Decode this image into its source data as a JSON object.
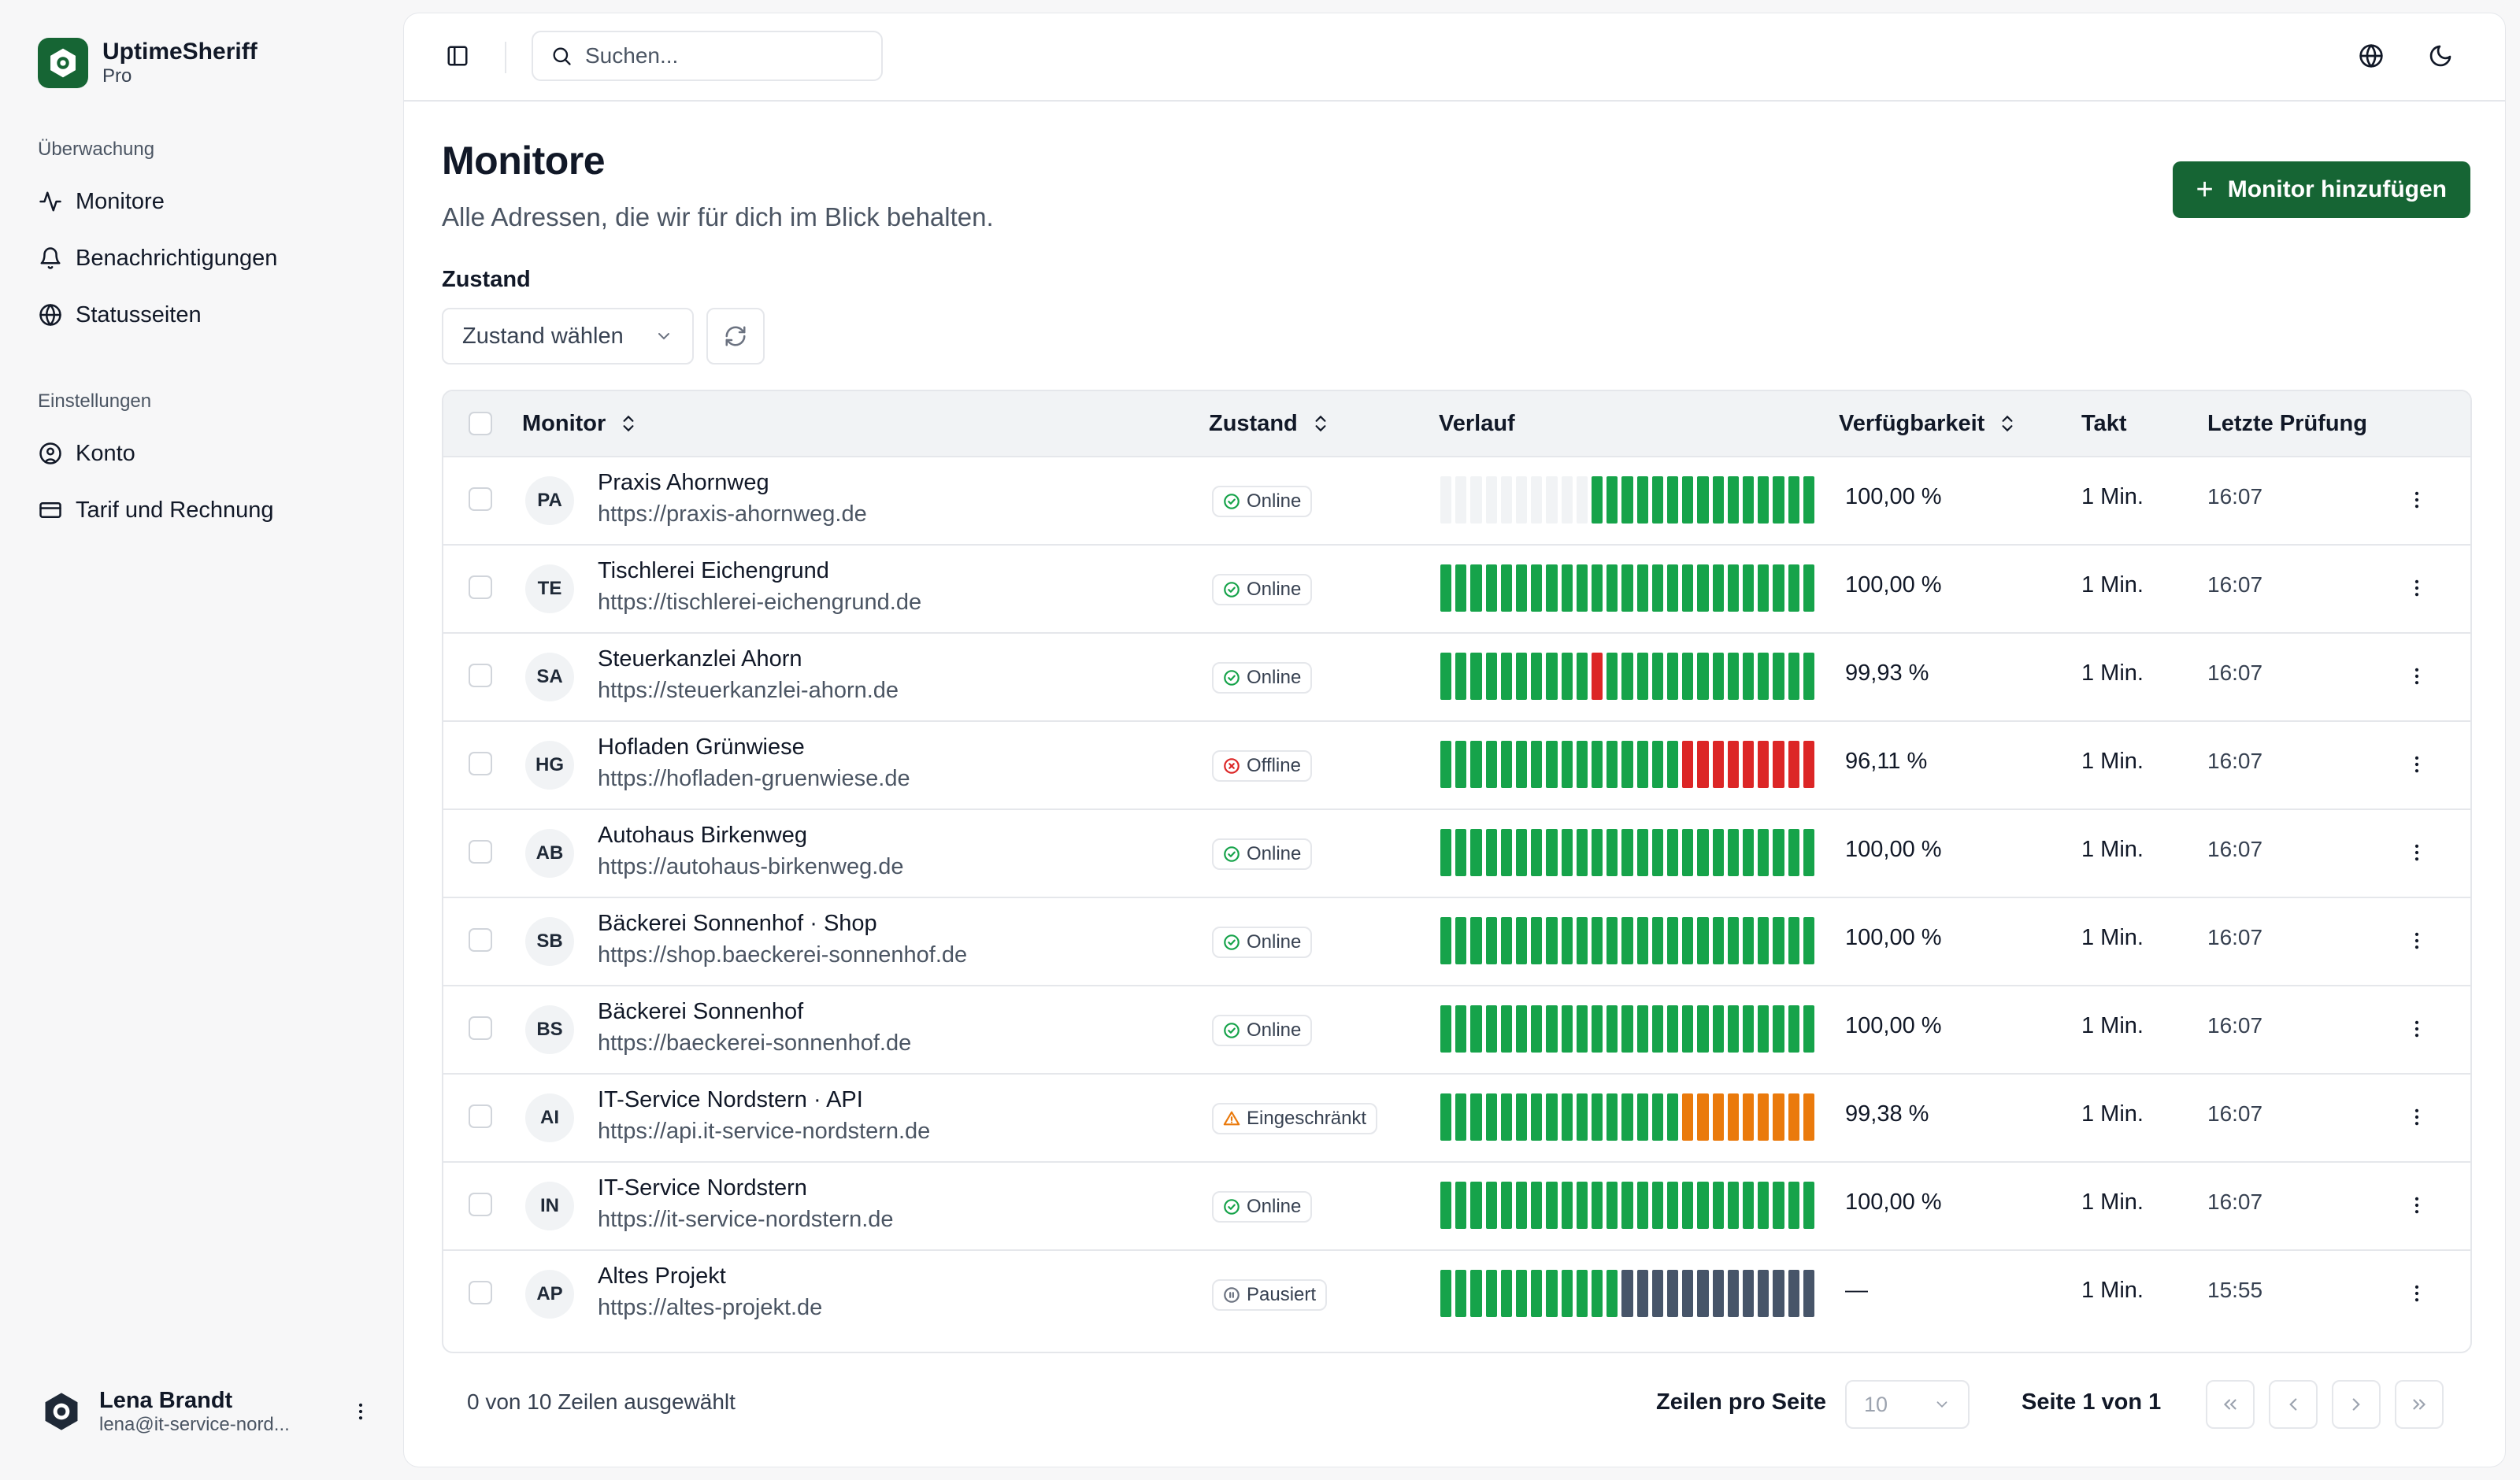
{
  "app": {
    "name": "UptimeSheriff",
    "plan": "Pro"
  },
  "sidebar": {
    "section_monitoring": "Überwachung",
    "section_settings": "Einstellungen",
    "items": [
      {
        "label": "Monitore",
        "icon": "activity-icon"
      },
      {
        "label": "Benachrichtigungen",
        "icon": "bell-icon"
      },
      {
        "label": "Statusseiten",
        "icon": "globe-icon"
      },
      {
        "label": "Konto",
        "icon": "user-circle-icon"
      },
      {
        "label": "Tarif und Rechnung",
        "icon": "credit-card-icon"
      }
    ],
    "user": {
      "name": "Lena Brandt",
      "email": "lena@it-service-nord..."
    }
  },
  "topbar": {
    "search_placeholder": "Suchen..."
  },
  "page": {
    "title": "Monitore",
    "subtitle": "Alle Adressen, die wir für dich im Blick behalten.",
    "add_button": "Monitor hinzufügen",
    "filter_label": "Zustand",
    "filter_placeholder": "Zustand wählen"
  },
  "table": {
    "columns": [
      "Monitor",
      "Zustand",
      "Verlauf",
      "Verfügbarkeit",
      "Takt",
      "Letzte Prüfung"
    ],
    "rows": [
      {
        "initials": "PA",
        "name": "Praxis Ahornweg",
        "url": "https://praxis-ahornweg.de",
        "status": "Online",
        "history": "eeeeeeeeeeggggggggggggggg",
        "availability": "100,00 %",
        "interval": "1 Min.",
        "last_check": "16:07"
      },
      {
        "initials": "TE",
        "name": "Tischlerei Eichengrund",
        "url": "https://tischlerei-eichengrund.de",
        "status": "Online",
        "history": "ggggggggggggggggggggggggg",
        "availability": "100,00 %",
        "interval": "1 Min.",
        "last_check": "16:07"
      },
      {
        "initials": "SA",
        "name": "Steuerkanzlei Ahorn",
        "url": "https://steuerkanzlei-ahorn.de",
        "status": "Online",
        "history": "ggggggggggrgggggggggggggg",
        "availability": "99,93 %",
        "interval": "1 Min.",
        "last_check": "16:07"
      },
      {
        "initials": "HG",
        "name": "Hofladen Grünwiese",
        "url": "https://hofladen-gruenwiese.de",
        "status": "Offline",
        "history": "ggggggggggggggggrrrrrrrrr",
        "availability": "96,11 %",
        "interval": "1 Min.",
        "last_check": "16:07"
      },
      {
        "initials": "AB",
        "name": "Autohaus Birkenweg",
        "url": "https://autohaus-birkenweg.de",
        "status": "Online",
        "history": "ggggggggggggggggggggggggg",
        "availability": "100,00 %",
        "interval": "1 Min.",
        "last_check": "16:07"
      },
      {
        "initials": "SB",
        "name": "Bäckerei Sonnenhof · Shop",
        "url": "https://shop.baeckerei-sonnenhof.de",
        "status": "Online",
        "history": "ggggggggggggggggggggggggg",
        "availability": "100,00 %",
        "interval": "1 Min.",
        "last_check": "16:07"
      },
      {
        "initials": "BS",
        "name": "Bäckerei Sonnenhof",
        "url": "https://baeckerei-sonnenhof.de",
        "status": "Online",
        "history": "ggggggggggggggggggggggggg",
        "availability": "100,00 %",
        "interval": "1 Min.",
        "last_check": "16:07"
      },
      {
        "initials": "AI",
        "name": "IT-Service Nordstern · API",
        "url": "https://api.it-service-nordstern.de",
        "status": "Eingeschränkt",
        "history": "ggggggggggggggggooooooooo",
        "availability": "99,38 %",
        "interval": "1 Min.",
        "last_check": "16:07"
      },
      {
        "initials": "IN",
        "name": "IT-Service Nordstern",
        "url": "https://it-service-nordstern.de",
        "status": "Online",
        "history": "ggggggggggggggggggggggggg",
        "availability": "100,00 %",
        "interval": "1 Min.",
        "last_check": "16:07"
      },
      {
        "initials": "AP",
        "name": "Altes Projekt",
        "url": "https://altes-projekt.de",
        "status": "Pausiert",
        "history": "ggggggggggggsssssssssssss",
        "availability": "—",
        "interval": "1 Min.",
        "last_check": "15:55"
      }
    ]
  },
  "footer": {
    "selected": "0 von 10 Zeilen ausgewählt",
    "rows_per_page_label": "Zeilen pro Seite",
    "rows_per_page": "10",
    "page_info": "Seite 1 von 1"
  },
  "colors": {
    "brand": "#166534",
    "up": "#16a34a",
    "down": "#dc2626",
    "degraded": "#ea7a0c",
    "paused": "#475569",
    "empty": "#f1f3f5"
  }
}
